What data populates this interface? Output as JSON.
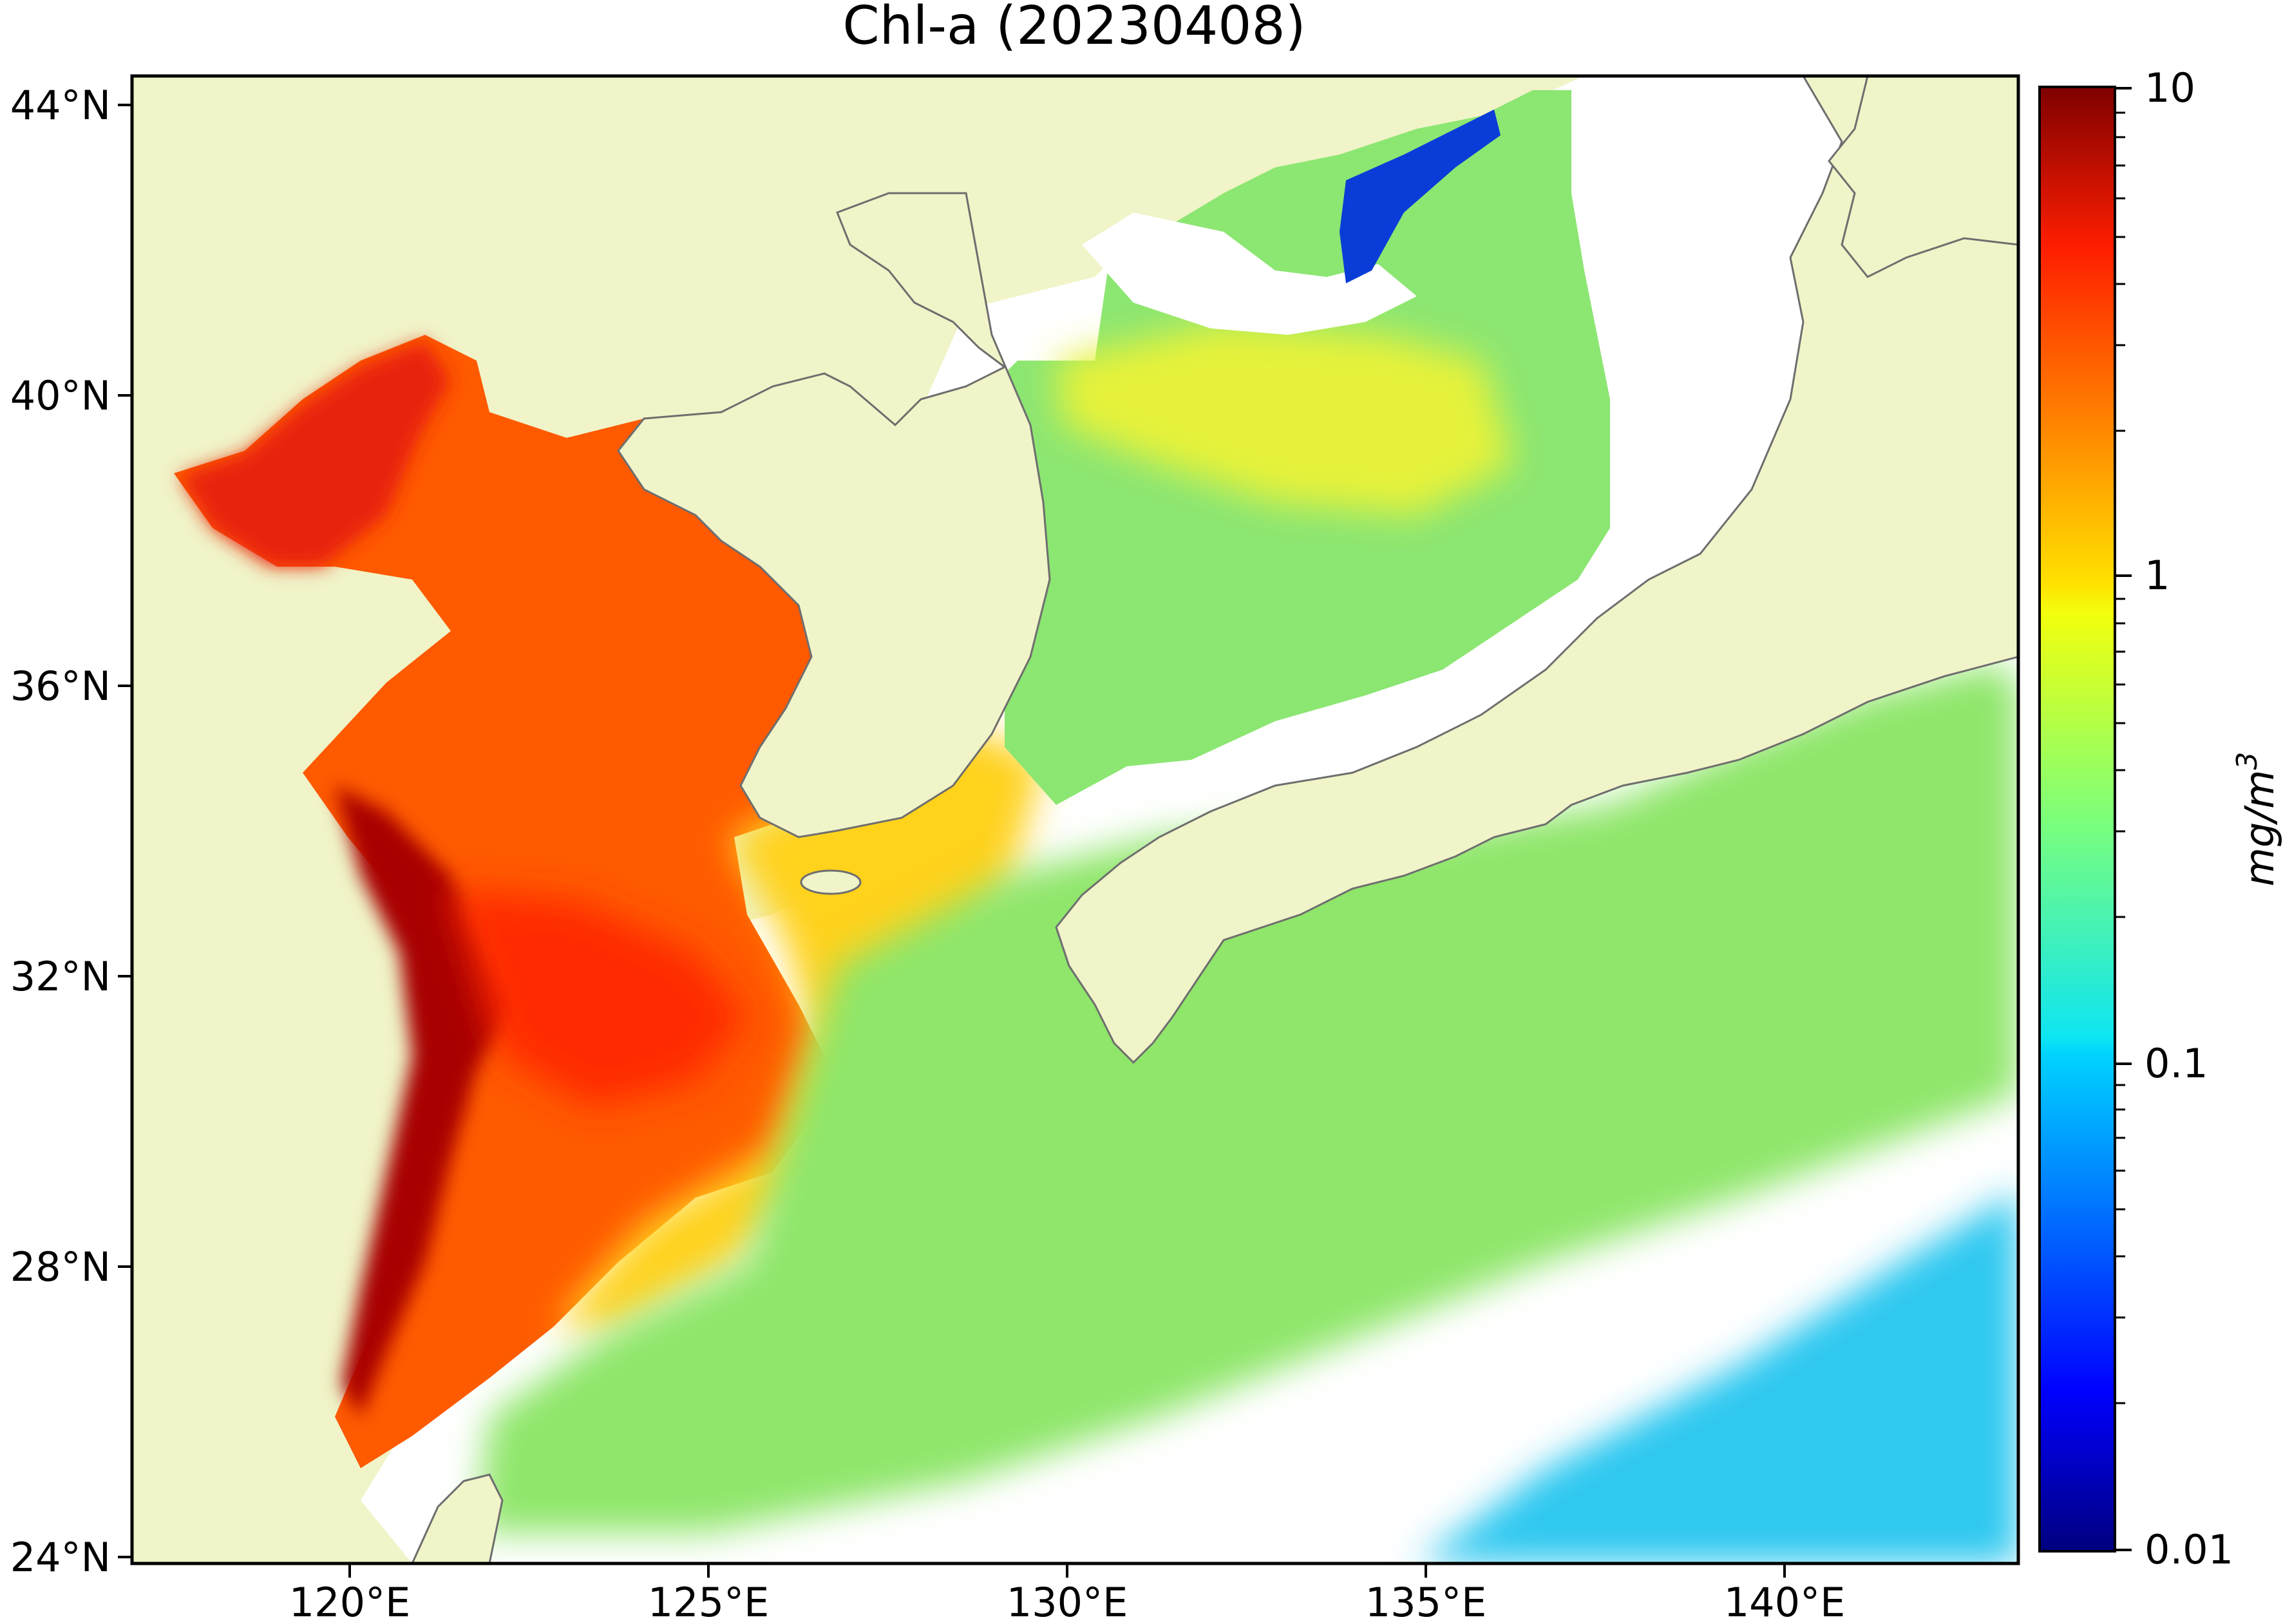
{
  "title": "Chl-a (20230408)",
  "map": {
    "region": "East China Sea, Yellow Sea, Sea of Japan and western North Pacific",
    "lon_range": [
      117,
      143.3
    ],
    "lat_range": [
      24,
      44.5
    ],
    "lon_ticks": [
      {
        "value": 120,
        "label": "120°E"
      },
      {
        "value": 125,
        "label": "125°E"
      },
      {
        "value": 130,
        "label": "130°E"
      },
      {
        "value": 135,
        "label": "135°E"
      },
      {
        "value": 140,
        "label": "140°E"
      }
    ],
    "lat_ticks": [
      {
        "value": 24,
        "label": "24°N"
      },
      {
        "value": 28,
        "label": "28°N"
      },
      {
        "value": 32,
        "label": "32°N"
      },
      {
        "value": 36,
        "label": "36°N"
      },
      {
        "value": 40,
        "label": "40°N"
      },
      {
        "value": 44,
        "label": "44°N"
      }
    ],
    "land_color": "#f0f4c8",
    "no_data_color": "#ffffff",
    "coastline_color": "#6e6e6e"
  },
  "colorbar": {
    "scale": "log",
    "range": [
      0.01,
      10
    ],
    "colormap": "jet",
    "ticks": [
      {
        "value": 10,
        "label": "10"
      },
      {
        "value": 1,
        "label": "1"
      },
      {
        "value": 0.1,
        "label": "0.1"
      },
      {
        "value": 0.01,
        "label": "0.01"
      }
    ],
    "unit_base": "mg/m",
    "unit_exp": "3"
  }
}
